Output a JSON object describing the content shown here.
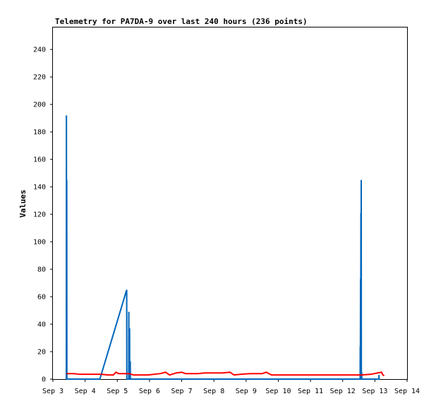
{
  "chart_data": {
    "type": "line",
    "title": "Telemetry for PA7DA-9 over last 240 hours (236 points)",
    "xlabel": "",
    "ylabel": "Values",
    "x_ticks": [
      "Sep 3",
      "Sep 4",
      "Sep 5",
      "Sep 6",
      "Sep 7",
      "Sep 8",
      "Sep 9",
      "Sep 10",
      "Sep 11",
      "Sep 12",
      "Sep 13",
      "Sep 14"
    ],
    "xlim": [
      "Sep 3 00:00",
      "Sep 14 00:00"
    ],
    "y_ticks": [
      0,
      20,
      40,
      60,
      80,
      100,
      120,
      140,
      160,
      180,
      200,
      220,
      240
    ],
    "ylim": [
      0,
      256
    ],
    "grid": false,
    "legend": "none",
    "series": [
      {
        "color": "#0066bb",
        "points": [
          [
            "Sep 3 10:00",
            0
          ],
          [
            "Sep 3 10:05",
            192
          ],
          [
            "Sep 3 10:10",
            0
          ],
          [
            "Sep 3 10:20",
            145
          ],
          [
            "Sep 3 10:25",
            0
          ],
          [
            "Sep 4 11:00",
            0
          ],
          [
            "Sep 5 07:00",
            65
          ],
          [
            "Sep 5 07:05",
            0
          ],
          [
            "Sep 5 08:30",
            0
          ],
          [
            "Sep 5 08:35",
            49
          ],
          [
            "Sep 5 08:40",
            0
          ],
          [
            "Sep 5 09:10",
            37
          ],
          [
            "Sep 5 09:15",
            0
          ],
          [
            "Sep 5 09:40",
            13
          ],
          [
            "Sep 5 09:45",
            0
          ],
          [
            "Sep 12 13:00",
            0
          ],
          [
            "Sep 12 13:05",
            24
          ],
          [
            "Sep 12 13:10",
            0
          ],
          [
            "Sep 12 13:20",
            73
          ],
          [
            "Sep 12 13:25",
            0
          ],
          [
            "Sep 12 13:35",
            121
          ],
          [
            "Sep 12 13:40",
            0
          ],
          [
            "Sep 12 13:50",
            145
          ],
          [
            "Sep 12 13:55",
            0
          ],
          [
            "Sep 12 14:10",
            5
          ],
          [
            "Sep 12 14:15",
            0
          ],
          [
            "Sep 13 03:00",
            0
          ],
          [
            "Sep 13 03:05",
            3
          ],
          [
            "Sep 13 03:10",
            0
          ]
        ]
      },
      {
        "color": "#ff0000",
        "points": [
          [
            "Sep 3 10:00",
            4
          ],
          [
            "Sep 3 16:00",
            4
          ],
          [
            "Sep 3 20:00",
            3.5
          ],
          [
            "Sep 4 12:00",
            3.5
          ],
          [
            "Sep 4 17:00",
            3
          ],
          [
            "Sep 4 21:00",
            3
          ],
          [
            "Sep 4 23:00",
            5
          ],
          [
            "Sep 5 01:00",
            4
          ],
          [
            "Sep 5 09:00",
            4
          ],
          [
            "Sep 5 12:00",
            3
          ],
          [
            "Sep 5 23:00",
            3
          ],
          [
            "Sep 6 08:00",
            4
          ],
          [
            "Sep 6 12:00",
            5
          ],
          [
            "Sep 6 15:00",
            3
          ],
          [
            "Sep 6 20:00",
            4.5
          ],
          [
            "Sep 7 00:00",
            5
          ],
          [
            "Sep 7 03:00",
            4
          ],
          [
            "Sep 7 12:00",
            4
          ],
          [
            "Sep 7 17:00",
            4.5
          ],
          [
            "Sep 8 00:00",
            4.5
          ],
          [
            "Sep 8 06:00",
            4.5
          ],
          [
            "Sep 8 12:00",
            5
          ],
          [
            "Sep 8 15:00",
            3
          ],
          [
            "Sep 8 20:00",
            3.5
          ],
          [
            "Sep 9 03:00",
            4
          ],
          [
            "Sep 9 12:00",
            4
          ],
          [
            "Sep 9 15:00",
            5
          ],
          [
            "Sep 9 19:00",
            3
          ],
          [
            "Sep 10 12:00",
            3
          ],
          [
            "Sep 11 12:00",
            3
          ],
          [
            "Sep 12 09:00",
            3
          ],
          [
            "Sep 12 13:00",
            3
          ],
          [
            "Sep 12 14:00",
            3
          ],
          [
            "Sep 12 21:00",
            3.5
          ],
          [
            "Sep 13 02:00",
            4.5
          ],
          [
            "Sep 13 05:00",
            5
          ],
          [
            "Sep 13 06:00",
            3
          ],
          [
            "Sep 13 07:00",
            2.5
          ]
        ]
      }
    ]
  }
}
